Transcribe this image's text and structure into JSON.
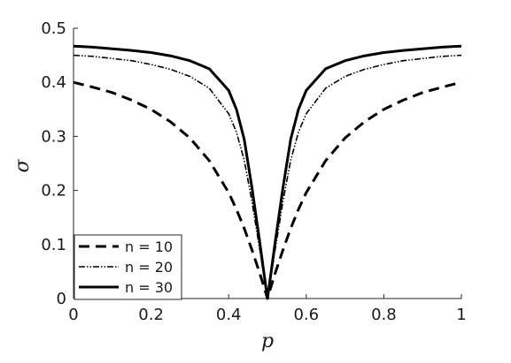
{
  "chart_data": {
    "type": "line",
    "title": "",
    "xlabel": "p",
    "ylabel": "σ",
    "xlim": [
      0,
      1
    ],
    "ylim": [
      0,
      0.5
    ],
    "x_ticks": [
      "0",
      "0.2",
      "0.4",
      "0.6",
      "0.8",
      "1"
    ],
    "y_ticks": [
      "0",
      "0.1",
      "0.2",
      "0.3",
      "0.4",
      "0.5"
    ],
    "grid": false,
    "legend_position": "bottom-left",
    "series": [
      {
        "name": "n = 10",
        "style": "dashed",
        "x": [
          0,
          0.05,
          0.1,
          0.15,
          0.2,
          0.25,
          0.3,
          0.35,
          0.4,
          0.42,
          0.44,
          0.46,
          0.48,
          0.49,
          0.5,
          0.51,
          0.52,
          0.54,
          0.56,
          0.58,
          0.6,
          0.65,
          0.7,
          0.75,
          0.8,
          0.85,
          0.9,
          0.95,
          1
        ],
        "y": [
          0.4,
          0.391,
          0.381,
          0.367,
          0.35,
          0.327,
          0.297,
          0.255,
          0.196,
          0.165,
          0.13,
          0.09,
          0.047,
          0.024,
          0,
          0.024,
          0.047,
          0.09,
          0.13,
          0.165,
          0.196,
          0.255,
          0.297,
          0.327,
          0.35,
          0.367,
          0.381,
          0.391,
          0.4
        ]
      },
      {
        "name": "n = 20",
        "style": "dash-dot",
        "x": [
          0,
          0.05,
          0.1,
          0.15,
          0.2,
          0.25,
          0.3,
          0.35,
          0.4,
          0.42,
          0.44,
          0.46,
          0.48,
          0.49,
          0.5,
          0.51,
          0.52,
          0.54,
          0.56,
          0.58,
          0.6,
          0.65,
          0.7,
          0.75,
          0.8,
          0.85,
          0.9,
          0.95,
          1
        ],
        "y": [
          0.45,
          0.448,
          0.444,
          0.44,
          0.433,
          0.424,
          0.411,
          0.389,
          0.342,
          0.308,
          0.256,
          0.18,
          0.091,
          0.045,
          0,
          0.045,
          0.091,
          0.18,
          0.256,
          0.308,
          0.342,
          0.389,
          0.411,
          0.424,
          0.433,
          0.44,
          0.444,
          0.448,
          0.45
        ]
      },
      {
        "name": "n = 30",
        "style": "solid",
        "x": [
          0,
          0.05,
          0.1,
          0.15,
          0.2,
          0.25,
          0.3,
          0.35,
          0.4,
          0.42,
          0.44,
          0.46,
          0.48,
          0.49,
          0.5,
          0.51,
          0.52,
          0.54,
          0.56,
          0.58,
          0.6,
          0.65,
          0.7,
          0.75,
          0.8,
          0.85,
          0.9,
          0.95,
          1
        ],
        "y": [
          0.467,
          0.465,
          0.462,
          0.459,
          0.455,
          0.449,
          0.44,
          0.425,
          0.385,
          0.35,
          0.295,
          0.205,
          0.105,
          0.052,
          0,
          0.052,
          0.105,
          0.205,
          0.295,
          0.35,
          0.385,
          0.425,
          0.44,
          0.449,
          0.455,
          0.459,
          0.462,
          0.465,
          0.467
        ]
      }
    ]
  }
}
